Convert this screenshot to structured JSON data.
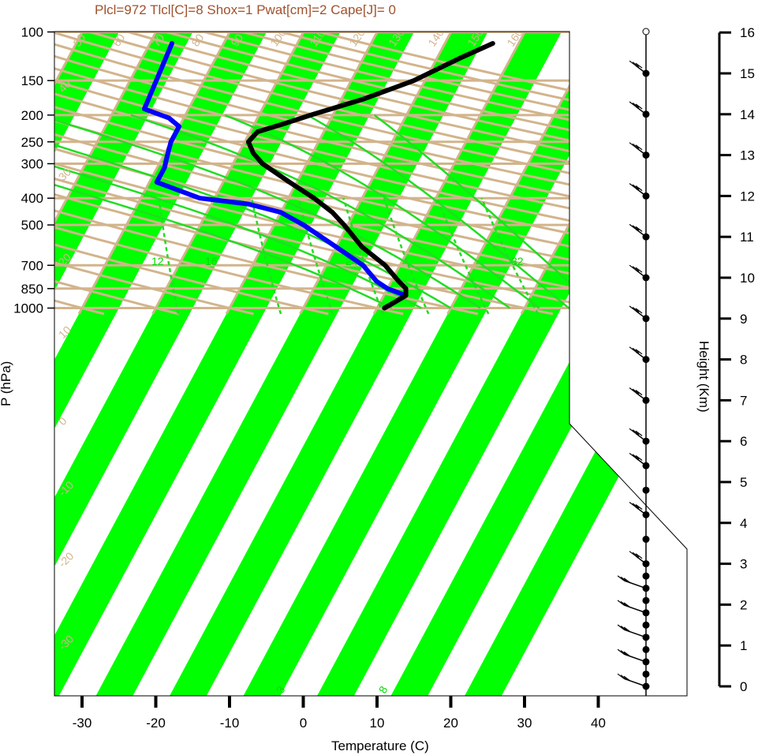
{
  "title": "Plcl=972 Tlcl[C]=8 Shox=1 Pwat[cm]=2 Cape[J]= 0",
  "colors": {
    "band": "#00ff00",
    "tan": "#d2b48c",
    "dry_adiabat": "#d2b48c",
    "moist_adiabat": "#22dd22",
    "mixing_ratio": "#22dd22",
    "temperature": "#000000",
    "dewpoint": "#0000ff",
    "title": "#a0522d"
  },
  "chart_data": {
    "type": "line",
    "title": "Plcl=972 Tlcl[C]=8 Shox=1 Pwat[cm]=2 Cape[J]= 0",
    "xlabel": "Temperature (C)",
    "ylabel": "P (hPa)",
    "y2label": "Height (Km)",
    "xlim": [
      -35,
      46
    ],
    "ylim_hpa": [
      1050,
      100
    ],
    "x_ticks": [
      "-30",
      "-20",
      "-10",
      "0",
      "10",
      "20",
      "30",
      "40"
    ],
    "x_tick_values": [
      -30,
      -20,
      -10,
      0,
      10,
      20,
      30,
      40
    ],
    "p_ticks": [
      "100",
      "150",
      "200",
      "250",
      "300",
      "400",
      "500",
      "700",
      "850",
      "1000"
    ],
    "p_tick_values": [
      100,
      150,
      200,
      250,
      300,
      400,
      500,
      700,
      850,
      1000
    ],
    "height_ticks": [
      "0",
      "1",
      "2",
      "3",
      "4",
      "5",
      "6",
      "7",
      "8",
      "9",
      "10",
      "11",
      "12",
      "13",
      "14",
      "15",
      "16"
    ],
    "height_tick_values": [
      0,
      1,
      2,
      3,
      4,
      5,
      6,
      7,
      8,
      9,
      10,
      11,
      12,
      13,
      14,
      15,
      16
    ],
    "dry_adiabat_labels": [
      "50",
      "60",
      "70",
      "80",
      "90",
      "100",
      "110",
      "120",
      "130",
      "140",
      "150",
      "160"
    ],
    "isotherm_labels": [
      "-30",
      "-20",
      "-10",
      "0",
      "10",
      "20",
      "30",
      "40",
      "30",
      "20",
      "10",
      "0",
      "-10",
      "-20",
      "-30"
    ],
    "moist_adiabat_labels": [
      "12",
      "16",
      "24",
      "32"
    ],
    "mixing_ratio_labels": [
      "3",
      "8",
      "20"
    ],
    "temperature": [
      {
        "p": 1000,
        "t": 11
      },
      {
        "p": 950,
        "t": 12
      },
      {
        "p": 900,
        "t": 13
      },
      {
        "p": 850,
        "t": 12.5
      },
      {
        "p": 800,
        "t": 11
      },
      {
        "p": 700,
        "t": 8
      },
      {
        "p": 600,
        "t": 3.5
      },
      {
        "p": 500,
        "t": -0.5
      },
      {
        "p": 450,
        "t": -3
      },
      {
        "p": 400,
        "t": -6.5
      },
      {
        "p": 350,
        "t": -11
      },
      {
        "p": 300,
        "t": -16
      },
      {
        "p": 275,
        "t": -18
      },
      {
        "p": 250,
        "t": -19.5
      },
      {
        "p": 230,
        "t": -19
      },
      {
        "p": 215,
        "t": -16
      },
      {
        "p": 200,
        "t": -13
      },
      {
        "p": 175,
        "t": -7
      },
      {
        "p": 150,
        "t": -1.5
      },
      {
        "p": 125,
        "t": 3
      },
      {
        "p": 110,
        "t": 6.5
      }
    ],
    "dewpoint": [
      {
        "p": 1000,
        "t": 11
      },
      {
        "p": 950,
        "t": 12
      },
      {
        "p": 900,
        "t": 13
      },
      {
        "p": 850,
        "t": 10
      },
      {
        "p": 800,
        "t": 8
      },
      {
        "p": 700,
        "t": 5
      },
      {
        "p": 600,
        "t": 0
      },
      {
        "p": 500,
        "t": -6
      },
      {
        "p": 450,
        "t": -10
      },
      {
        "p": 420,
        "t": -15
      },
      {
        "p": 400,
        "t": -22
      },
      {
        "p": 350,
        "t": -29
      },
      {
        "p": 310,
        "t": -29
      },
      {
        "p": 280,
        "t": -29.5
      },
      {
        "p": 250,
        "t": -30
      },
      {
        "p": 220,
        "t": -30
      },
      {
        "p": 205,
        "t": -32
      },
      {
        "p": 190,
        "t": -36
      },
      {
        "p": 110,
        "t": -37
      }
    ],
    "wind_barbs_height_km": [
      0,
      0.3,
      0.6,
      0.9,
      1.2,
      1.5,
      1.8,
      2.1,
      2.4,
      2.7,
      3.0,
      3.6,
      4.2,
      4.8,
      5.4,
      6.0,
      7.0,
      8.0,
      9.0,
      10.0,
      11.0,
      12.0,
      13.0,
      14.0,
      15.0
    ]
  }
}
